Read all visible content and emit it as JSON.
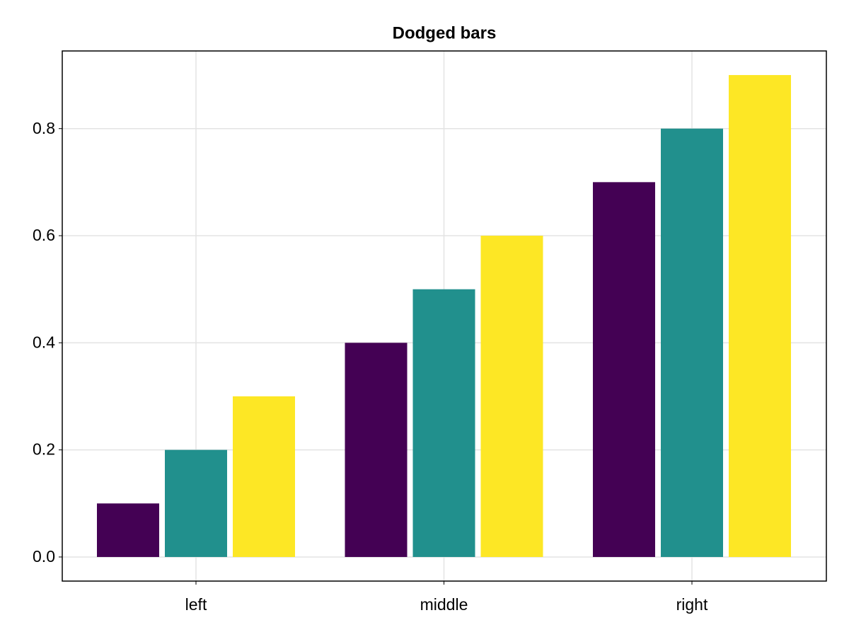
{
  "chart_data": {
    "type": "bar",
    "title": "Dodged bars",
    "categories": [
      "left",
      "middle",
      "right"
    ],
    "series": [
      {
        "color": "#440154",
        "values": [
          0.1,
          0.4,
          0.7
        ]
      },
      {
        "color": "#21908d",
        "values": [
          0.2,
          0.5,
          0.8
        ]
      },
      {
        "color": "#fde725",
        "values": [
          0.3,
          0.6,
          0.9
        ]
      }
    ],
    "ylim": [
      -0.045,
      0.945
    ],
    "yticks": [
      {
        "value": 0,
        "label": "0.0"
      },
      0.2,
      0.4,
      0.6,
      0.8
    ],
    "grid": true
  }
}
